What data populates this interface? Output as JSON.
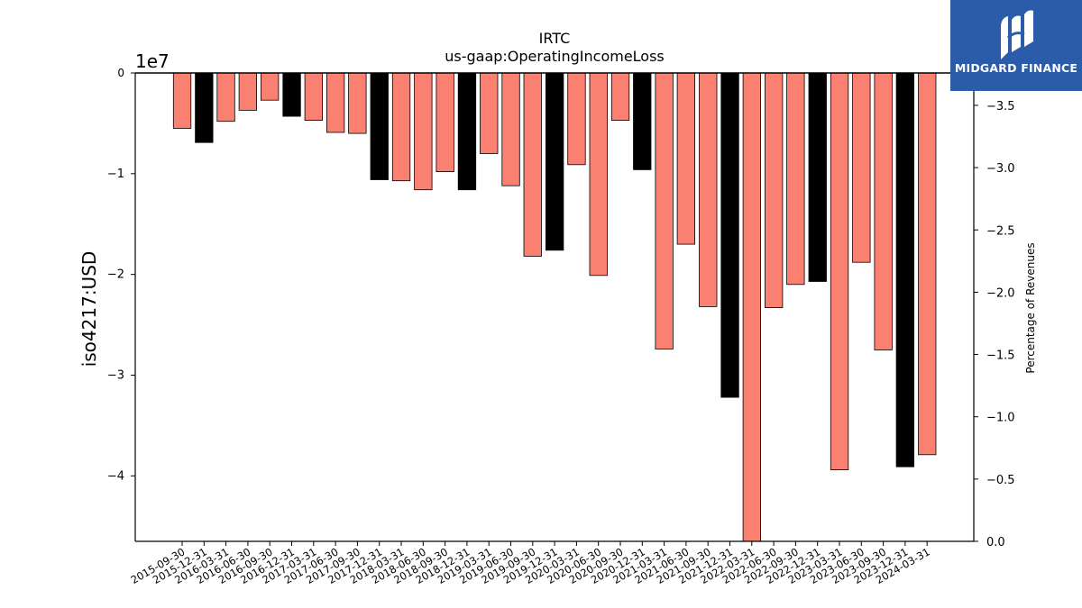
{
  "chart_data": {
    "type": "bar",
    "title": "IRTC",
    "subtitle": "us-gaap:OperatingIncomeLoss",
    "ylabel": "iso4217:USD",
    "y_offset_label": "1e7",
    "y2label": "Percentage of Revenues",
    "ylim": [
      -4.65,
      0
    ],
    "y2lim": [
      0.0,
      3.76
    ],
    "yticks": [
      "0",
      "−1",
      "−2",
      "−3",
      "−4"
    ],
    "y2ticks": [
      "0.0",
      "−0.5",
      "−1.0",
      "−1.5",
      "−2.0",
      "−2.5",
      "−3.0",
      "−3.5"
    ],
    "categories": [
      "2015-09-30",
      "2015-12-31",
      "2016-03-31",
      "2016-06-30",
      "2016-09-30",
      "2016-12-31",
      "2017-03-31",
      "2017-06-30",
      "2017-09-30",
      "2017-12-31",
      "2018-03-31",
      "2018-06-30",
      "2018-09-30",
      "2018-12-31",
      "2019-03-31",
      "2019-06-30",
      "2019-09-30",
      "2019-12-31",
      "2020-03-31",
      "2020-06-30",
      "2020-09-30",
      "2020-12-31",
      "2021-03-31",
      "2021-06-30",
      "2021-09-30",
      "2021-12-31",
      "2022-03-31",
      "2022-06-30",
      "2022-09-30",
      "2022-12-31",
      "2023-03-31",
      "2023-06-30",
      "2023-09-30",
      "2023-12-31",
      "2024-03-31"
    ],
    "values": [
      -0.55,
      -0.69,
      -0.48,
      -0.37,
      -0.27,
      -0.43,
      -0.47,
      -0.59,
      -0.6,
      -1.06,
      -1.07,
      -1.16,
      -0.98,
      -1.16,
      -0.8,
      -1.12,
      -1.82,
      -1.76,
      -0.91,
      -2.01,
      -0.47,
      -0.96,
      -2.74,
      -1.7,
      -2.32,
      -3.22,
      -4.65,
      -2.33,
      -2.1,
      -2.07,
      -3.94,
      -1.88,
      -2.75,
      -3.91,
      -3.79
    ],
    "bar_kind": [
      "q",
      "fy",
      "q",
      "q",
      "q",
      "fy",
      "q",
      "q",
      "q",
      "fy",
      "q",
      "q",
      "q",
      "fy",
      "q",
      "q",
      "q",
      "fy",
      "q",
      "q",
      "q",
      "fy",
      "q",
      "q",
      "q",
      "fy",
      "q",
      "q",
      "q",
      "fy",
      "q",
      "q",
      "q",
      "fy",
      "q"
    ],
    "colors": {
      "quarter": "#fa8072",
      "fiscal_year": "#000000"
    }
  },
  "logo": {
    "name": "MIDGARD FINANCE"
  }
}
